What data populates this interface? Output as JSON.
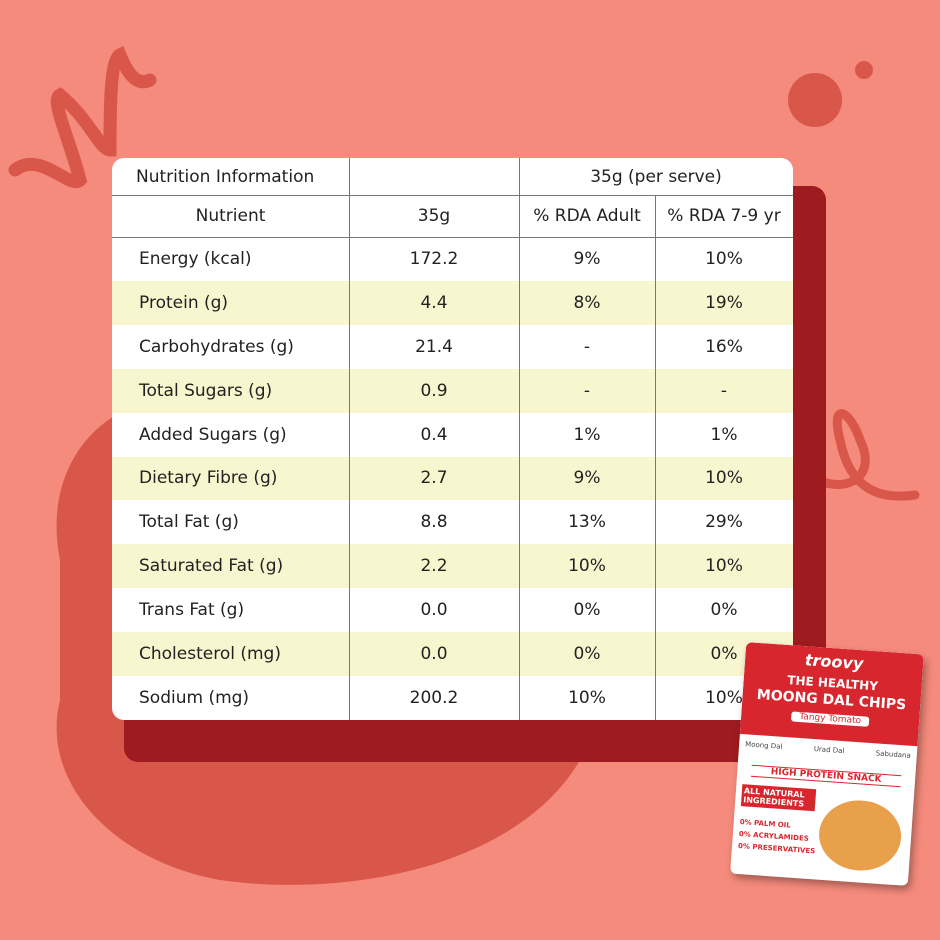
{
  "table": {
    "title_row": [
      "Nutrition Information",
      "35g (per serve)"
    ],
    "header": [
      "Nutrient",
      "35g",
      "% RDA Adult",
      "% RDA 7-9 yr"
    ],
    "rows": [
      [
        "Energy (kcal)",
        "172.2",
        "9%",
        "10%"
      ],
      [
        "Protein (g)",
        "4.4",
        "8%",
        "19%"
      ],
      [
        "Carbohydrates (g)",
        "21.4",
        "-",
        "16%"
      ],
      [
        "Total Sugars (g)",
        "0.9",
        "-",
        "-"
      ],
      [
        "Added Sugars (g)",
        "0.4",
        "1%",
        "1%"
      ],
      [
        "Dietary Fibre (g)",
        "2.7",
        "9%",
        "10%"
      ],
      [
        "Total Fat (g)",
        "8.8",
        "13%",
        "29%"
      ],
      [
        "Saturated Fat (g)",
        "2.2",
        "10%",
        "10%"
      ],
      [
        "Trans Fat (g)",
        "0.0",
        "0%",
        "0%"
      ],
      [
        "Cholesterol (mg)",
        "0.0",
        "0%",
        "0%"
      ],
      [
        "Sodium (mg)",
        "200.2",
        "10%",
        "10%"
      ]
    ]
  },
  "package": {
    "brand": "troovy",
    "tagline": "THE HEALTHY",
    "product": "MOONG DAL CHIPS",
    "flavour": "Tangy Tomato",
    "ingredients": [
      "Moong Dal",
      "Urad Dal",
      "Sabudana"
    ],
    "badge": "HIGH PROTEIN SNACK",
    "claim": "ALL NATURAL INGREDIENTS",
    "points": [
      "0% PALM OIL",
      "0% ACRYLAMIDES",
      "0% PRESERVATIVES"
    ]
  }
}
